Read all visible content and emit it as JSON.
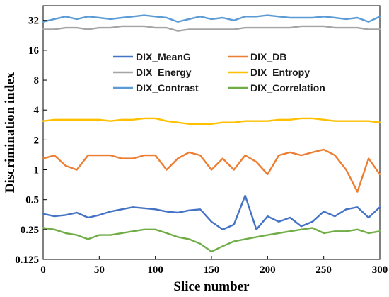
{
  "chart_data": {
    "type": "line",
    "xlabel": "Slice number",
    "ylabel": "Discrimination index",
    "xlim": [
      0,
      300
    ],
    "ylim": [
      0.125,
      45
    ],
    "y_scale": "log2",
    "x_ticks": [
      0,
      50,
      100,
      150,
      200,
      250,
      300
    ],
    "y_ticks": [
      {
        "value": 0.125,
        "label": "0.125"
      },
      {
        "value": 0.25,
        "label": "0.25"
      },
      {
        "value": 0.5,
        "label": "0.5"
      },
      {
        "value": 1,
        "label": "1"
      },
      {
        "value": 2,
        "label": "2"
      },
      {
        "value": 4,
        "label": "4"
      },
      {
        "value": 8,
        "label": "8"
      },
      {
        "value": 16,
        "label": "16"
      },
      {
        "value": 32,
        "label": "32"
      }
    ],
    "grid": false,
    "legend_placement": "upper-center",
    "x": [
      0,
      10,
      20,
      30,
      40,
      50,
      60,
      70,
      80,
      90,
      100,
      110,
      120,
      130,
      140,
      150,
      160,
      170,
      180,
      190,
      200,
      210,
      220,
      230,
      240,
      250,
      260,
      270,
      280,
      290,
      300
    ],
    "series": [
      {
        "name": "DIX_MeanG",
        "color": "#4472C4",
        "values": [
          0.36,
          0.34,
          0.35,
          0.37,
          0.33,
          0.35,
          0.38,
          0.4,
          0.42,
          0.41,
          0.4,
          0.38,
          0.37,
          0.39,
          0.4,
          0.3,
          0.25,
          0.28,
          0.55,
          0.25,
          0.34,
          0.3,
          0.33,
          0.27,
          0.3,
          0.38,
          0.34,
          0.4,
          0.42,
          0.33,
          0.42
        ]
      },
      {
        "name": "DIX_DB",
        "color": "#ED7D31",
        "values": [
          1.3,
          1.4,
          1.1,
          1.0,
          1.4,
          1.4,
          1.4,
          1.3,
          1.3,
          1.4,
          1.4,
          1.0,
          1.3,
          1.5,
          1.4,
          1.0,
          1.3,
          1.0,
          1.4,
          1.2,
          0.9,
          1.4,
          1.5,
          1.4,
          1.5,
          1.6,
          1.4,
          1.0,
          0.6,
          1.3,
          0.9
        ]
      },
      {
        "name": "DIX_Energy",
        "color": "#A5A5A5",
        "values": [
          26,
          26,
          27,
          27,
          26,
          27,
          27,
          28,
          28,
          28,
          27,
          27,
          25,
          26,
          26,
          26,
          26,
          26,
          27,
          27,
          27,
          27,
          27,
          28,
          28,
          28,
          27,
          27,
          27,
          26,
          26
        ]
      },
      {
        "name": "DIX_Entropy",
        "color": "#FFC000",
        "values": [
          3.1,
          3.2,
          3.2,
          3.2,
          3.2,
          3.2,
          3.1,
          3.2,
          3.2,
          3.3,
          3.3,
          3.1,
          3.0,
          2.9,
          2.9,
          2.9,
          3.0,
          3.0,
          3.1,
          3.1,
          3.1,
          3.2,
          3.2,
          3.3,
          3.3,
          3.2,
          3.1,
          3.1,
          3.1,
          3.1,
          3.0
        ]
      },
      {
        "name": "DIX_Contrast",
        "color": "#5B9BD5",
        "values": [
          31,
          33,
          35,
          33,
          35,
          34,
          33,
          34,
          35,
          36,
          35,
          34,
          31,
          33,
          35,
          33,
          34,
          32,
          35,
          35,
          36,
          35,
          34,
          34,
          34,
          35,
          34,
          33,
          34,
          31,
          35
        ]
      },
      {
        "name": "DIX_Correlation",
        "color": "#70AD47",
        "values": [
          0.26,
          0.25,
          0.23,
          0.22,
          0.2,
          0.22,
          0.22,
          0.23,
          0.24,
          0.25,
          0.25,
          0.23,
          0.21,
          0.2,
          0.18,
          0.15,
          0.17,
          0.19,
          0.2,
          0.21,
          0.22,
          0.23,
          0.24,
          0.25,
          0.26,
          0.23,
          0.24,
          0.24,
          0.25,
          0.23,
          0.24
        ]
      }
    ]
  }
}
